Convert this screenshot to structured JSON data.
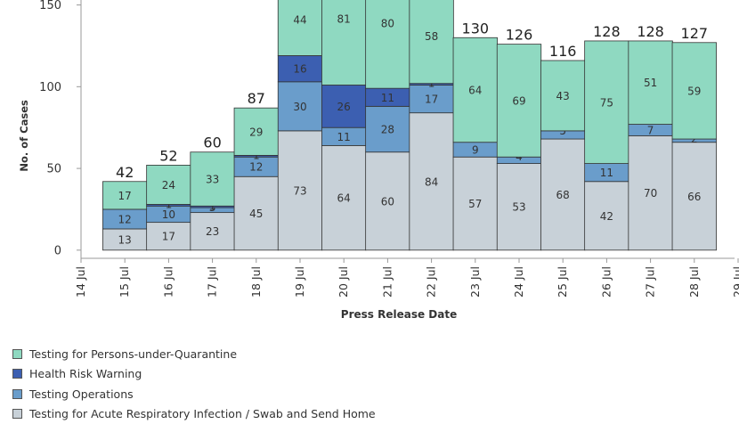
{
  "chart_data": {
    "type": "bar",
    "stacked": true,
    "xlabel": "Press Release Date",
    "ylabel": "No. of Cases",
    "ylim": [
      -5,
      158
    ],
    "yticks": [
      0,
      50,
      100,
      150
    ],
    "xticks": [
      "14 Jul",
      "15 Jul",
      "16 Jul",
      "17 Jul",
      "18 Jul",
      "19 Jul",
      "20 Jul",
      "21 Jul",
      "22 Jul",
      "23 Jul",
      "24 Jul",
      "25 Jul",
      "26 Jul",
      "27 Jul",
      "28 Jul",
      "29 Jul"
    ],
    "categories": [
      "15 Jul",
      "16 Jul",
      "17 Jul",
      "18 Jul",
      "19 Jul",
      "20 Jul",
      "21 Jul",
      "22 Jul",
      "23 Jul",
      "24 Jul",
      "25 Jul",
      "26 Jul",
      "27 Jul",
      "28 Jul"
    ],
    "totals": [
      42,
      52,
      60,
      87,
      null,
      null,
      null,
      null,
      130,
      126,
      116,
      128,
      128,
      127
    ],
    "series": [
      {
        "name": "Testing for Acute Respiratory Infection / Swab and Send Home",
        "color": "#c8d1d8",
        "values": [
          13,
          17,
          23,
          45,
          73,
          64,
          60,
          84,
          57,
          53,
          68,
          42,
          70,
          66
        ],
        "labels": [
          "13",
          "17",
          "23",
          "45",
          "73",
          "64",
          "60",
          "84",
          "57",
          "53",
          "68",
          "42",
          "70",
          "66"
        ]
      },
      {
        "name": "Testing Operations",
        "color": "#6a9dcb",
        "values": [
          12,
          10,
          3,
          12,
          30,
          11,
          28,
          17,
          9,
          4,
          5,
          11,
          7,
          2
        ],
        "labels": [
          "12",
          "10",
          "3",
          "12",
          "30",
          "11",
          "28",
          "17",
          "9",
          "4",
          "5",
          "11",
          "7",
          "2"
        ]
      },
      {
        "name": "Health Risk Warning",
        "color": "#3c5fb1",
        "values": [
          0,
          1,
          1,
          1,
          16,
          26,
          11,
          1,
          0,
          0,
          0,
          0,
          0,
          0
        ],
        "labels": [
          "",
          "1",
          "1",
          "1",
          "16",
          "26",
          "11",
          "1",
          "",
          "",
          "",
          "",
          "",
          ""
        ]
      },
      {
        "name": "Testing for Persons-under-Quarantine",
        "color": "#8fd9c1",
        "values": [
          17,
          24,
          33,
          29,
          44,
          81,
          80,
          58,
          64,
          69,
          43,
          75,
          51,
          59
        ],
        "labels": [
          "17",
          "24",
          "33",
          "29",
          "44",
          "81",
          "80",
          "58",
          "64",
          "69",
          "43",
          "75",
          "51",
          "59"
        ]
      }
    ],
    "legend_position": "bottom-left",
    "grid": false
  },
  "legend_items": [
    {
      "label": "Testing for Persons-under-Quarantine",
      "color": "#8fd9c1"
    },
    {
      "label": "Health Risk Warning",
      "color": "#3c5fb1"
    },
    {
      "label": "Testing Operations",
      "color": "#6a9dcb"
    },
    {
      "label": "Testing for Acute Respiratory Infection / Swab and Send Home",
      "color": "#c8d1d8"
    }
  ]
}
